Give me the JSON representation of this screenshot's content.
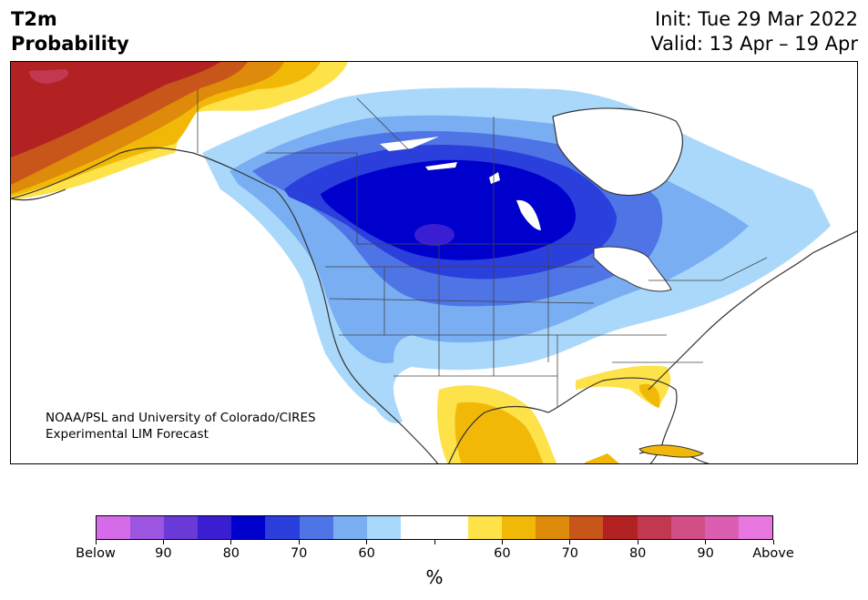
{
  "header": {
    "title_line1": "T2m",
    "title_line2": "Probability",
    "init": "Init: Tue 29 Mar 2022",
    "valid": "Valid: 13 Apr – 19 Apr"
  },
  "credit": {
    "line1": "NOAA/PSL and University of Colorado/CIRES",
    "line2": "Experimental LIM Forecast"
  },
  "colorbar": {
    "colors": [
      "#d56be8",
      "#9b55e0",
      "#6a3ad8",
      "#3a1ed2",
      "#0000cc",
      "#2a3fdc",
      "#4f74e6",
      "#79aef2",
      "#aad8fb",
      "#ffffff",
      "#ffffff",
      "#fde24a",
      "#f2b807",
      "#de8a0a",
      "#c8561a",
      "#b22222",
      "#c23851",
      "#d14f84",
      "#dc5eb3",
      "#e878e0"
    ],
    "tick_labels": [
      "Below",
      "90",
      "80",
      "70",
      "60",
      "",
      "60",
      "70",
      "80",
      "90",
      "Above"
    ],
    "unit": "%"
  },
  "map": {
    "region": "North America",
    "legend_colors": {
      "below_deep": "#0000cc",
      "below_mid": "#2a3fdc",
      "below_light": "#79aef2",
      "below_pale": "#aad8fb",
      "above_pale": "#fde24a",
      "above_mid": "#f2b807",
      "above_high": "#c8561a",
      "above_deep": "#b22222"
    }
  }
}
